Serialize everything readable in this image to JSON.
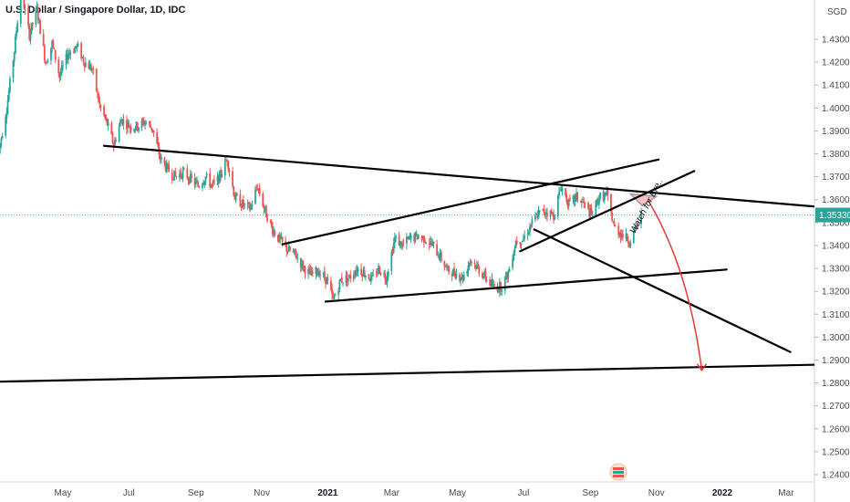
{
  "chart_data": {
    "type": "candlestick",
    "title": "U.S. Dollar / Singapore Dollar, 1D, IDC",
    "currency": "SGD",
    "last_price": "1.35330",
    "colors": {
      "up": "#26a69a",
      "down": "#ef5350",
      "lines": "#000000",
      "arrow": "#e53935",
      "price_line": "#26a69a"
    },
    "y_ticks": [
      "1.43000",
      "1.42000",
      "1.41000",
      "1.40000",
      "1.39000",
      "1.38000",
      "1.37000",
      "1.36000",
      "1.35000",
      "1.34000",
      "1.33000",
      "1.32000",
      "1.31000",
      "1.30000",
      "1.29000",
      "1.28000",
      "1.27000",
      "1.26000",
      "1.25000",
      "1.24000"
    ],
    "ylim": [
      1.2375,
      1.4525
    ],
    "x_ticks": [
      {
        "label": "May",
        "date": "2020-05-01"
      },
      {
        "label": "Jul",
        "date": "2020-07-01"
      },
      {
        "label": "Sep",
        "date": "2020-09-01"
      },
      {
        "label": "Nov",
        "date": "2020-11-01"
      },
      {
        "label": "2021",
        "date": "2021-01-01",
        "bold": true
      },
      {
        "label": "Mar",
        "date": "2021-03-01"
      },
      {
        "label": "May",
        "date": "2021-05-01"
      },
      {
        "label": "Jul",
        "date": "2021-07-01"
      },
      {
        "label": "Sep",
        "date": "2021-09-01"
      },
      {
        "label": "Nov",
        "date": "2021-11-01"
      },
      {
        "label": "2022",
        "date": "2022-01-01",
        "bold": true
      },
      {
        "label": "Mar",
        "date": "2022-03-01"
      }
    ],
    "price_path": [
      [
        "2020-03-03",
        1.382
      ],
      [
        "2020-03-10",
        1.4
      ],
      [
        "2020-03-17",
        1.425
      ],
      [
        "2020-03-23",
        1.452
      ],
      [
        "2020-03-31",
        1.432
      ],
      [
        "2020-04-07",
        1.443
      ],
      [
        "2020-04-15",
        1.42
      ],
      [
        "2020-04-21",
        1.428
      ],
      [
        "2020-04-28",
        1.414
      ],
      [
        "2020-05-06",
        1.424
      ],
      [
        "2020-05-14",
        1.427
      ],
      [
        "2020-05-21",
        1.42
      ],
      [
        "2020-05-28",
        1.417
      ],
      [
        "2020-06-04",
        1.401
      ],
      [
        "2020-06-11",
        1.393
      ],
      [
        "2020-06-17",
        1.384
      ],
      [
        "2020-06-24",
        1.395
      ],
      [
        "2020-07-02",
        1.392
      ],
      [
        "2020-07-09",
        1.392
      ],
      [
        "2020-07-16",
        1.394
      ],
      [
        "2020-07-23",
        1.391
      ],
      [
        "2020-07-30",
        1.378
      ],
      [
        "2020-08-06",
        1.373
      ],
      [
        "2020-08-13",
        1.37
      ],
      [
        "2020-08-20",
        1.372
      ],
      [
        "2020-08-27",
        1.369
      ],
      [
        "2020-09-03",
        1.366
      ],
      [
        "2020-09-10",
        1.37
      ],
      [
        "2020-09-16",
        1.366
      ],
      [
        "2020-09-22",
        1.369
      ],
      [
        "2020-09-30",
        1.378
      ],
      [
        "2020-10-07",
        1.361
      ],
      [
        "2020-10-14",
        1.358
      ],
      [
        "2020-10-21",
        1.356
      ],
      [
        "2020-10-28",
        1.366
      ],
      [
        "2020-11-04",
        1.355
      ],
      [
        "2020-11-11",
        1.347
      ],
      [
        "2020-11-18",
        1.342
      ],
      [
        "2020-11-25",
        1.338
      ],
      [
        "2020-12-02",
        1.336
      ],
      [
        "2020-12-09",
        1.331
      ],
      [
        "2020-12-16",
        1.327
      ],
      [
        "2020-12-23",
        1.329
      ],
      [
        "2020-12-31",
        1.325
      ],
      [
        "2021-01-06",
        1.316
      ],
      [
        "2021-01-13",
        1.325
      ],
      [
        "2021-01-21",
        1.326
      ],
      [
        "2021-01-28",
        1.33
      ],
      [
        "2021-02-04",
        1.328
      ],
      [
        "2021-02-11",
        1.325
      ],
      [
        "2021-02-17",
        1.33
      ],
      [
        "2021-02-24",
        1.326
      ],
      [
        "2021-03-04",
        1.343
      ],
      [
        "2021-03-11",
        1.34
      ],
      [
        "2021-03-18",
        1.343
      ],
      [
        "2021-03-25",
        1.344
      ],
      [
        "2021-04-01",
        1.343
      ],
      [
        "2021-04-08",
        1.34
      ],
      [
        "2021-04-15",
        1.335
      ],
      [
        "2021-04-22",
        1.329
      ],
      [
        "2021-04-29",
        1.328
      ],
      [
        "2021-05-06",
        1.326
      ],
      [
        "2021-05-13",
        1.334
      ],
      [
        "2021-05-20",
        1.33
      ],
      [
        "2021-05-27",
        1.326
      ],
      [
        "2021-06-03",
        1.322
      ],
      [
        "2021-06-10",
        1.322
      ],
      [
        "2021-06-17",
        1.328
      ],
      [
        "2021-06-24",
        1.342
      ],
      [
        "2021-07-01",
        1.343
      ],
      [
        "2021-07-08",
        1.349
      ],
      [
        "2021-07-15",
        1.354
      ],
      [
        "2021-07-22",
        1.355
      ],
      [
        "2021-07-29",
        1.353
      ],
      [
        "2021-08-05",
        1.366
      ],
      [
        "2021-08-12",
        1.358
      ],
      [
        "2021-08-19",
        1.361
      ],
      [
        "2021-08-26",
        1.358
      ],
      [
        "2021-09-02",
        1.353
      ],
      [
        "2021-09-09",
        1.361
      ],
      [
        "2021-09-16",
        1.362
      ],
      [
        "2021-09-23",
        1.348
      ],
      [
        "2021-09-30",
        1.345
      ],
      [
        "2021-10-07",
        1.342
      ],
      [
        "2021-10-12",
        1.346
      ],
      [
        "2021-10-18",
        1.353
      ]
    ],
    "trend_lines": [
      {
        "name": "upper-resistance",
        "from": [
          "2020-06-08",
          1.3835
        ],
        "to": [
          "2022-04-01",
          1.3568
        ]
      },
      {
        "name": "channel-top",
        "from": [
          "2020-11-20",
          1.3405
        ],
        "to": [
          "2021-11-03",
          1.3775
        ]
      },
      {
        "name": "channel-bottom",
        "from": [
          "2020-12-30",
          1.3155
        ],
        "to": [
          "2022-01-05",
          1.3295
        ]
      },
      {
        "name": "inner-rising",
        "from": [
          "2021-06-28",
          1.3375
        ],
        "to": [
          "2021-12-06",
          1.3725
        ]
      },
      {
        "name": "descending",
        "from": [
          "2021-07-11",
          1.347
        ],
        "to": [
          "2022-03-05",
          1.2935
        ]
      },
      {
        "name": "long-term-support",
        "from": [
          "2020-02-25",
          1.2805
        ],
        "to": [
          "2022-04-01",
          1.288
        ]
      }
    ],
    "triangle": [
      [
        "2021-10-08",
        1.3625
      ],
      [
        "2021-11-01",
        1.3614
      ],
      [
        "2021-10-19",
        1.3573
      ]
    ],
    "arrow": {
      "start": [
        "2021-10-24",
        1.36
      ],
      "control": [
        "2021-12-01",
        1.33
      ],
      "end": [
        "2021-12-13",
        1.2855
      ]
    },
    "annotations": [
      {
        "text": "Watch for Bre..",
        "date": "2021-10-12",
        "value": 1.345,
        "angle": -62
      }
    ]
  }
}
